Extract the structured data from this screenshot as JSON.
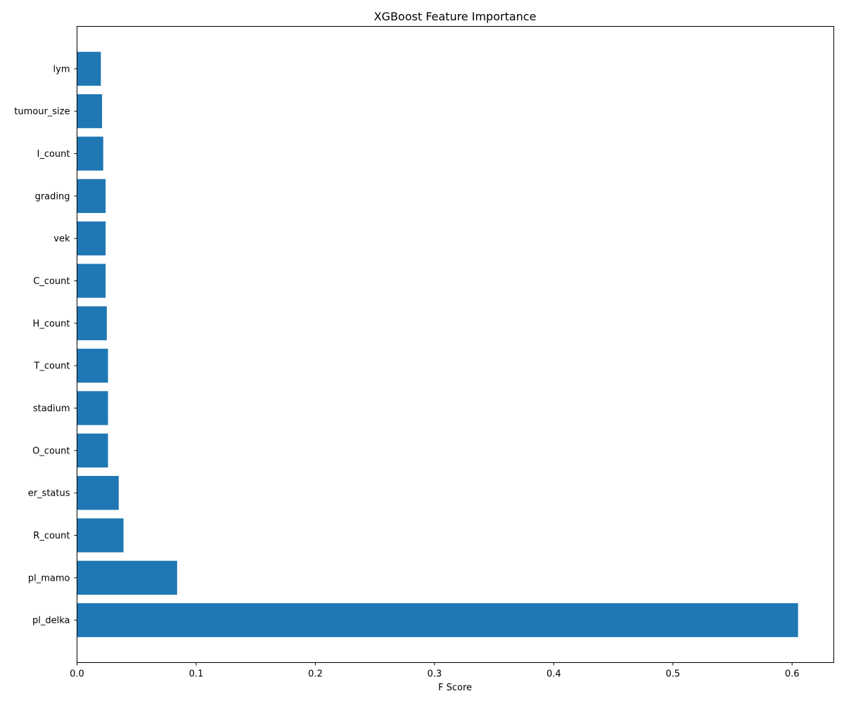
{
  "chart_data": {
    "type": "bar",
    "orientation": "horizontal",
    "title": "XGBoost Feature Importance",
    "xlabel": "F Score",
    "ylabel": "",
    "xlim": [
      0,
      0.635
    ],
    "xticks": [
      "0.0",
      "0.1",
      "0.2",
      "0.3",
      "0.4",
      "0.5",
      "0.6"
    ],
    "grid": false,
    "bar_color": "#1f77b4",
    "categories": [
      "pl_delka",
      "pl_mamo",
      "R_count",
      "er_status",
      "O_count",
      "stadium",
      "T_count",
      "H_count",
      "C_count",
      "vek",
      "grading",
      "I_count",
      "tumour_size",
      "lym"
    ],
    "values": [
      0.605,
      0.084,
      0.039,
      0.035,
      0.026,
      0.026,
      0.026,
      0.025,
      0.024,
      0.024,
      0.024,
      0.022,
      0.021,
      0.02
    ]
  }
}
